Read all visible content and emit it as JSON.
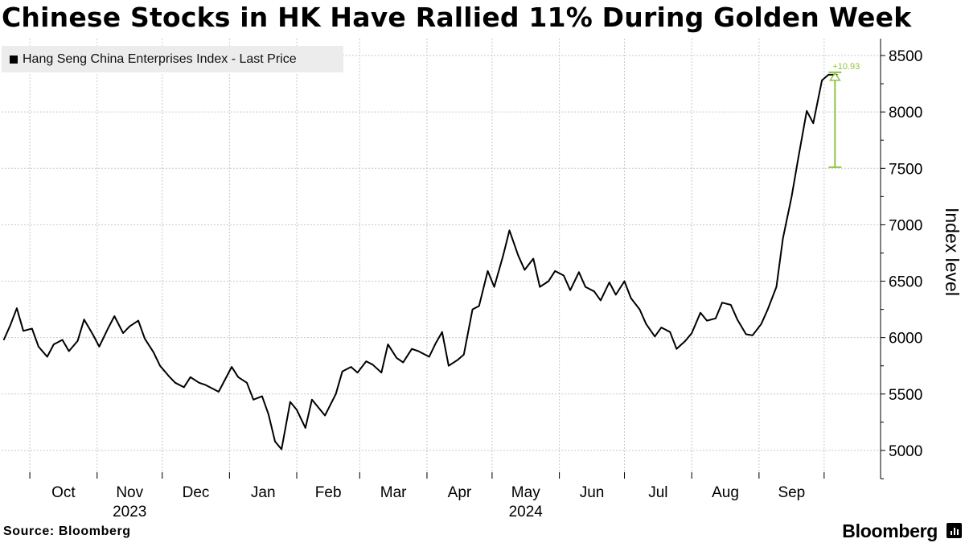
{
  "title": "Chinese Stocks in HK Have Rallied 11% During Golden Week",
  "footer": {
    "source": "Source: Bloomberg",
    "brand": "Bloomberg"
  },
  "colors": {
    "line": "#000000",
    "annotation": "#8dc63f",
    "grid": "#c8c8c8",
    "legend_bg": "#ececec"
  },
  "chart_data": {
    "type": "line",
    "title": "Chinese Stocks in HK Have Rallied 11% During Golden Week",
    "ylabel": "Index level",
    "ylim": [
      4750,
      8650
    ],
    "yticks": [
      5000,
      5500,
      6000,
      6500,
      7000,
      7500,
      8000,
      8500
    ],
    "y_axis_side": "right",
    "grid": true,
    "legend_position": "top-left",
    "x_tick_labels": [
      {
        "date": "2023-10-01",
        "label": "Oct"
      },
      {
        "date": "2023-11-01",
        "label": "Nov"
      },
      {
        "date": "2023-12-01",
        "label": "Dec"
      },
      {
        "date": "2024-01-01",
        "label": "Jan"
      },
      {
        "date": "2024-02-01",
        "label": "Feb"
      },
      {
        "date": "2024-03-01",
        "label": "Mar"
      },
      {
        "date": "2024-04-01",
        "label": "Apr"
      },
      {
        "date": "2024-05-01",
        "label": "May"
      },
      {
        "date": "2024-06-01",
        "label": "Jun"
      },
      {
        "date": "2024-07-01",
        "label": "Jul"
      },
      {
        "date": "2024-08-01",
        "label": "Aug"
      },
      {
        "date": "2024-09-01",
        "label": "Sep"
      }
    ],
    "year_labels": [
      {
        "date": "2023-11-01",
        "label": "2023"
      },
      {
        "date": "2024-05-01",
        "label": "2024"
      }
    ],
    "series": [
      {
        "name": "Hang Seng China Enterprises Index - Last Price",
        "x": [
          "2023-09-19",
          "2023-09-22",
          "2023-09-25",
          "2023-09-28",
          "2023-10-02",
          "2023-10-05",
          "2023-10-09",
          "2023-10-12",
          "2023-10-16",
          "2023-10-19",
          "2023-10-23",
          "2023-10-26",
          "2023-10-30",
          "2023-11-02",
          "2023-11-06",
          "2023-11-09",
          "2023-11-13",
          "2023-11-16",
          "2023-11-20",
          "2023-11-23",
          "2023-11-27",
          "2023-11-30",
          "2023-12-04",
          "2023-12-07",
          "2023-12-11",
          "2023-12-14",
          "2023-12-18",
          "2023-12-21",
          "2023-12-27",
          "2024-01-02",
          "2024-01-05",
          "2024-01-09",
          "2024-01-12",
          "2024-01-16",
          "2024-01-19",
          "2024-01-22",
          "2024-01-25",
          "2024-01-29",
          "2024-02-01",
          "2024-02-05",
          "2024-02-08",
          "2024-02-14",
          "2024-02-19",
          "2024-02-22",
          "2024-02-26",
          "2024-02-29",
          "2024-03-04",
          "2024-03-07",
          "2024-03-11",
          "2024-03-14",
          "2024-03-18",
          "2024-03-21",
          "2024-03-25",
          "2024-03-28",
          "2024-04-02",
          "2024-04-05",
          "2024-04-08",
          "2024-04-11",
          "2024-04-15",
          "2024-04-18",
          "2024-04-22",
          "2024-04-25",
          "2024-04-29",
          "2024-05-02",
          "2024-05-06",
          "2024-05-09",
          "2024-05-13",
          "2024-05-16",
          "2024-05-20",
          "2024-05-23",
          "2024-05-27",
          "2024-05-30",
          "2024-06-03",
          "2024-06-06",
          "2024-06-10",
          "2024-06-13",
          "2024-06-17",
          "2024-06-20",
          "2024-06-24",
          "2024-06-27",
          "2024-07-01",
          "2024-07-04",
          "2024-07-08",
          "2024-07-11",
          "2024-07-15",
          "2024-07-18",
          "2024-07-22",
          "2024-07-25",
          "2024-07-29",
          "2024-08-01",
          "2024-08-05",
          "2024-08-08",
          "2024-08-12",
          "2024-08-15",
          "2024-08-19",
          "2024-08-22",
          "2024-08-26",
          "2024-08-29",
          "2024-09-02",
          "2024-09-05",
          "2024-09-09",
          "2024-09-12",
          "2024-09-16",
          "2024-09-19",
          "2024-09-23",
          "2024-09-26",
          "2024-09-30",
          "2024-10-03",
          "2024-10-07"
        ],
        "y": [
          5980,
          6110,
          6260,
          6060,
          6080,
          5920,
          5830,
          5940,
          5980,
          5880,
          5970,
          6160,
          6030,
          5920,
          6080,
          6190,
          6040,
          6100,
          6150,
          5990,
          5870,
          5750,
          5660,
          5600,
          5560,
          5650,
          5600,
          5580,
          5520,
          5740,
          5650,
          5600,
          5450,
          5480,
          5320,
          5080,
          5010,
          5430,
          5360,
          5200,
          5450,
          5310,
          5500,
          5700,
          5740,
          5690,
          5790,
          5760,
          5690,
          5940,
          5820,
          5780,
          5900,
          5880,
          5830,
          5950,
          6050,
          5750,
          5800,
          5850,
          6250,
          6280,
          6590,
          6450,
          6720,
          6950,
          6730,
          6600,
          6700,
          6450,
          6500,
          6590,
          6550,
          6420,
          6580,
          6450,
          6410,
          6330,
          6490,
          6380,
          6500,
          6350,
          6250,
          6120,
          6010,
          6090,
          6050,
          5900,
          5970,
          6040,
          6220,
          6150,
          6170,
          6310,
          6290,
          6160,
          6030,
          6020,
          6120,
          6250,
          6450,
          6880,
          7250,
          7580,
          8010,
          7900,
          8280,
          8330,
          8330
        ]
      }
    ],
    "annotations": [
      {
        "text": "+10.93",
        "from_value": 7510,
        "to_value": 8330,
        "date": "2024-10-06"
      }
    ]
  }
}
